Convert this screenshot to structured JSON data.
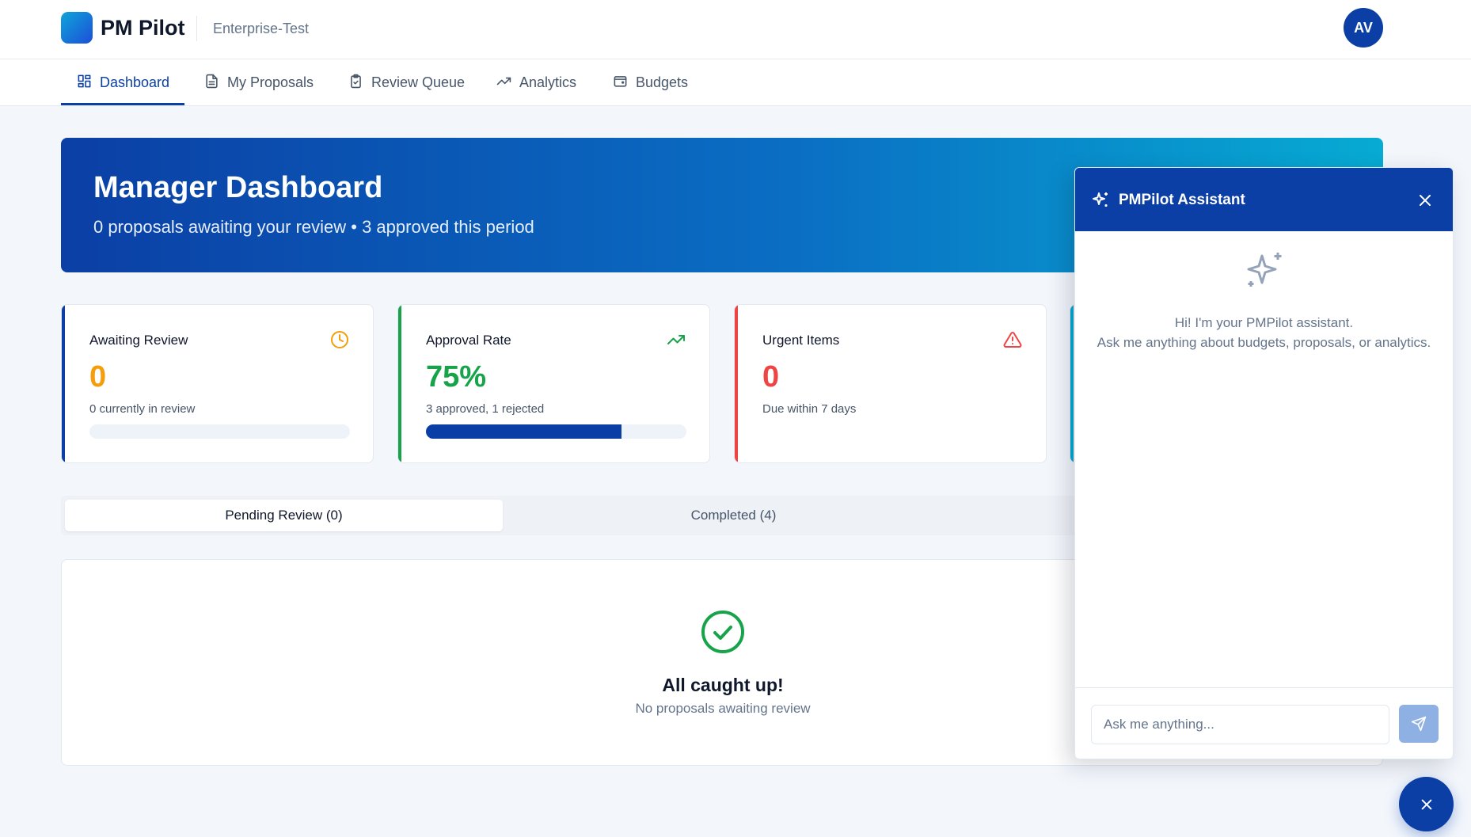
{
  "header": {
    "brand": "PM Pilot",
    "workspace": "Enterprise-Test",
    "avatar_initials": "AV"
  },
  "nav": {
    "items": [
      {
        "label": "Dashboard",
        "icon": "dashboard-grid-icon",
        "active": true
      },
      {
        "label": "My Proposals",
        "icon": "document-icon",
        "active": false
      },
      {
        "label": "Review Queue",
        "icon": "clipboard-check-icon",
        "active": false
      },
      {
        "label": "Analytics",
        "icon": "trending-up-icon",
        "active": false
      },
      {
        "label": "Budgets",
        "icon": "wallet-icon",
        "active": false
      }
    ]
  },
  "hero": {
    "title": "Manager Dashboard",
    "subtitle": "0 proposals awaiting your review • 3 approved this period"
  },
  "stats": [
    {
      "title": "Awaiting Review",
      "value": "0",
      "note": "0 currently in review",
      "icon": "clock-icon",
      "accent": "#f59e0b",
      "border": "#0b3fa5",
      "progress": 0
    },
    {
      "title": "Approval Rate",
      "value": "75%",
      "note": "3 approved, 1 rejected",
      "icon": "trending-up-icon",
      "accent": "#16a34a",
      "border": "#16a34a",
      "progress": 0.75
    },
    {
      "title": "Urgent Items",
      "value": "0",
      "note": "Due within 7 days",
      "icon": "alert-triangle-icon",
      "accent": "#ef4444",
      "border": "#ef4444"
    }
  ],
  "tabs": {
    "pending": "Pending Review (0)",
    "completed": "Completed (4)"
  },
  "empty_state": {
    "title": "All caught up!",
    "subtitle": "No proposals awaiting review"
  },
  "assistant": {
    "title": "PMPilot Assistant",
    "greeting_line1": "Hi! I'm your PMPilot assistant.",
    "greeting_line2": "Ask me anything about budgets, proposals, or analytics.",
    "input_placeholder": "Ask me anything..."
  },
  "colors": {
    "primary": "#0b3fa5",
    "success": "#16a34a",
    "warning": "#f59e0b",
    "danger": "#ef4444"
  }
}
